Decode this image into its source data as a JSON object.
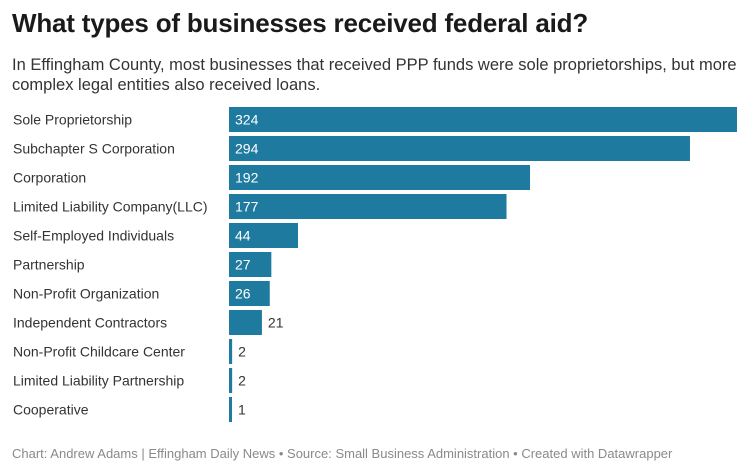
{
  "header": {
    "title": "What types of businesses received federal aid?",
    "subtitle": "In Effingham County, most businesses that received PPP funds were sole proprietorships, but more complex legal entities also received loans."
  },
  "footer": {
    "credit": "Chart: Andrew Adams | Effingham Daily News • Source: Small Business Administration • Created with Datawrapper"
  },
  "colors": {
    "bar": "#1f7aa0"
  },
  "chart_data": {
    "type": "bar",
    "orientation": "horizontal",
    "categories": [
      "Sole Proprietorship",
      "Subchapter S Corporation",
      "Corporation",
      "Limited Liability Company(LLC)",
      "Self-Employed Individuals",
      "Partnership",
      "Non-Profit Organization",
      "Independent Contractors",
      "Non-Profit Childcare Center",
      "Limited Liability Partnership",
      "Cooperative"
    ],
    "values": [
      324,
      294,
      192,
      177,
      44,
      27,
      26,
      21,
      2,
      2,
      1
    ],
    "xlim": [
      0,
      324
    ],
    "grid": false,
    "legend": "none"
  }
}
